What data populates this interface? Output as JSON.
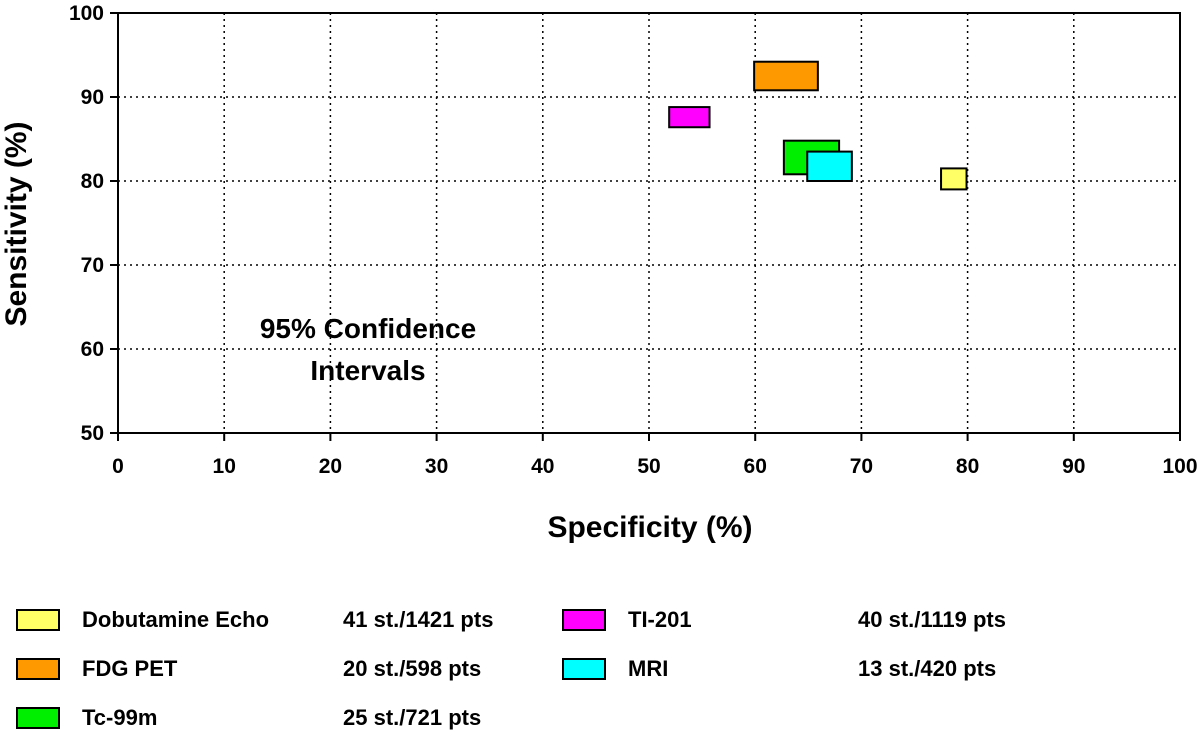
{
  "chart_data": {
    "type": "scatter",
    "title": "",
    "xlabel": "Specificity (%)",
    "ylabel": "Sensitivity (%)",
    "xlim": [
      0,
      100
    ],
    "ylim": [
      50,
      100
    ],
    "xticks": [
      0,
      10,
      20,
      30,
      40,
      50,
      60,
      70,
      80,
      90,
      100
    ],
    "yticks": [
      50,
      60,
      70,
      80,
      90,
      100
    ],
    "grid": true,
    "annotation": [
      "95% Confidence",
      "Intervals"
    ],
    "series": [
      {
        "name": "Dobutamine Echo",
        "studies": "41 st./1421 pts",
        "color": "#ffff66",
        "specificity_ci": [
          77.5,
          79.9
        ],
        "sensitivity_ci": [
          79.0,
          81.5
        ]
      },
      {
        "name": "FDG PET",
        "studies": "20 st./598 pts",
        "color": "#ff9900",
        "specificity_ci": [
          59.9,
          65.9
        ],
        "sensitivity_ci": [
          90.8,
          94.2
        ]
      },
      {
        "name": "Tc-99m",
        "studies": "25 st./721 pts",
        "color": "#00ee00",
        "specificity_ci": [
          62.7,
          67.9
        ],
        "sensitivity_ci": [
          80.8,
          84.8
        ]
      },
      {
        "name": "TI-201",
        "studies": "40 st./1119 pts",
        "color": "#ff00ff",
        "specificity_ci": [
          51.9,
          55.7
        ],
        "sensitivity_ci": [
          86.4,
          88.8
        ]
      },
      {
        "name": "MRI",
        "studies": "13 st./420 pts",
        "color": "#00ffff",
        "specificity_ci": [
          64.9,
          69.1
        ],
        "sensitivity_ci": [
          80.0,
          83.5
        ]
      }
    ]
  },
  "legend": {
    "items": [
      {
        "name": "Dobutamine Echo",
        "studies": "41 st./1421 pts",
        "color": "#ffff66"
      },
      {
        "name": "FDG PET",
        "studies": "20 st./598 pts",
        "color": "#ff9900"
      },
      {
        "name": "Tc-99m",
        "studies": "25 st./721 pts",
        "color": "#00ee00"
      },
      {
        "name": "TI-201",
        "studies": "40 st./1119 pts",
        "color": "#ff00ff"
      },
      {
        "name": "MRI",
        "studies": "13 st./420 pts",
        "color": "#00ffff"
      }
    ]
  }
}
